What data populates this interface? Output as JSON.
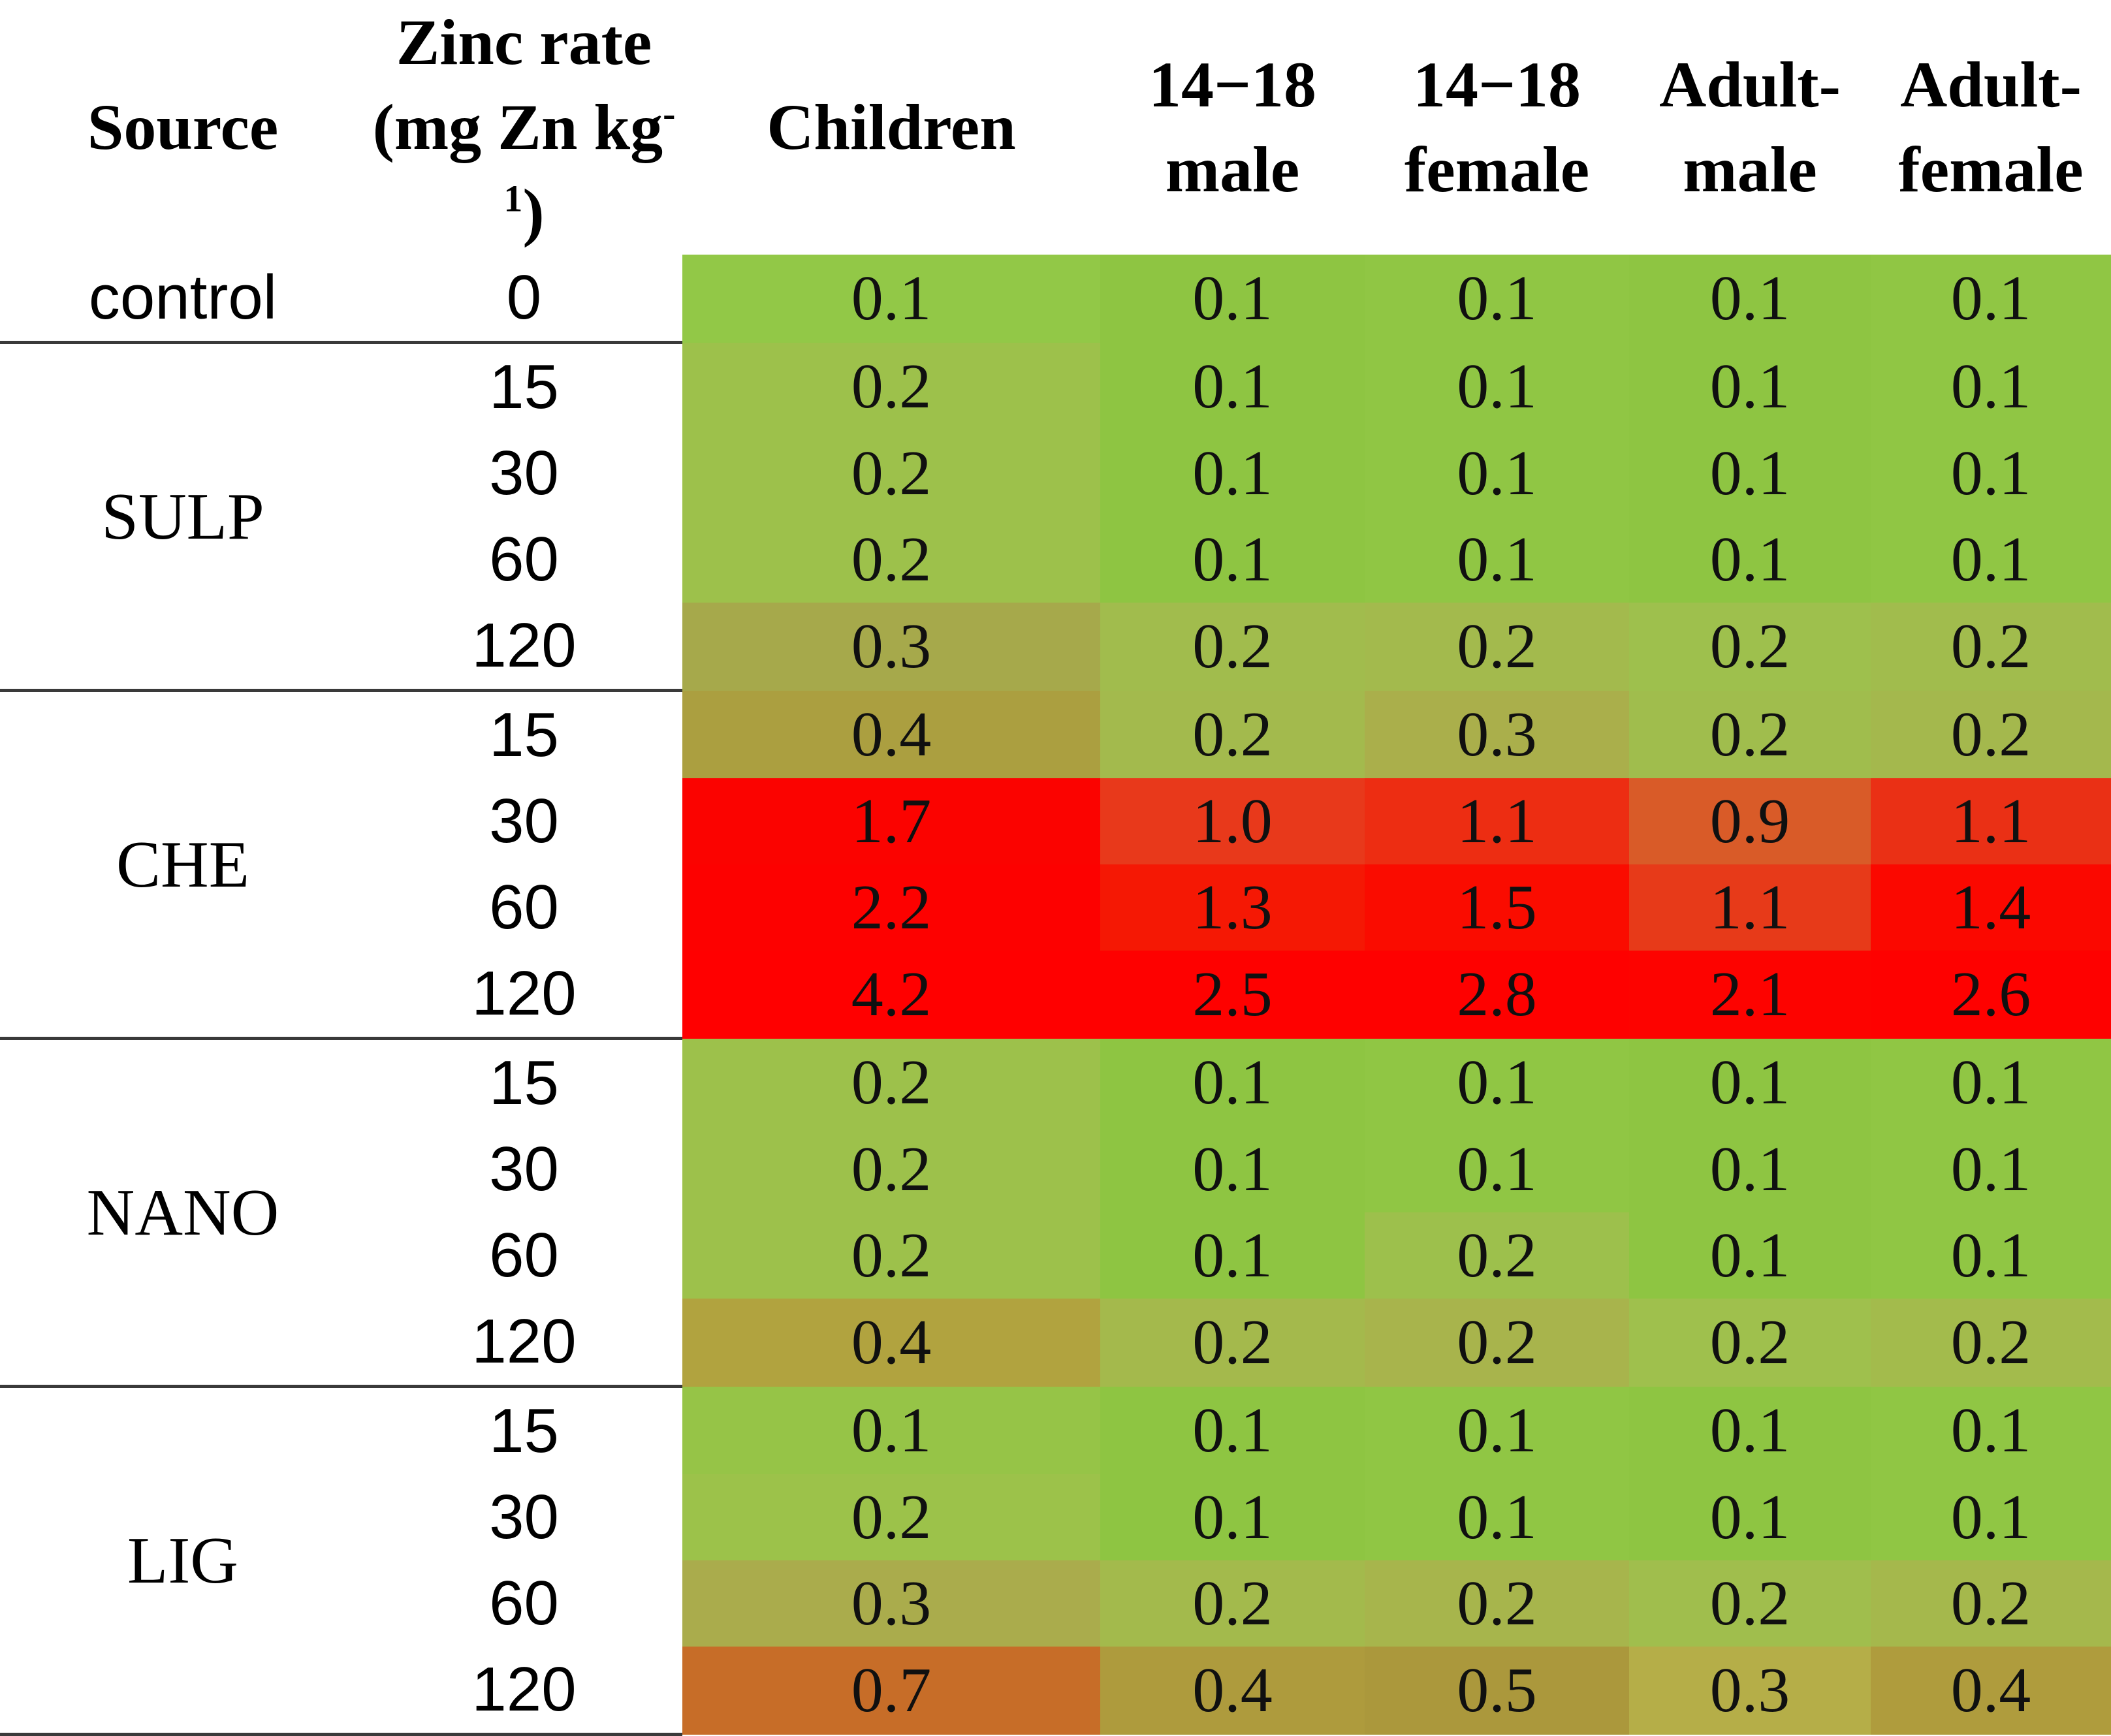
{
  "columns": [
    {
      "line1": "Source",
      "line2": ""
    },
    {
      "line1": "Zinc rate",
      "line2_pre": "(mg Zn kg",
      "sup": "-1",
      "line2_post": ")"
    },
    {
      "line1": "Children",
      "line2": ""
    },
    {
      "line1": "14−18",
      "line2": "male"
    },
    {
      "line1": "14−18",
      "line2": "female"
    },
    {
      "line1": "Adult-",
      "line2": "male"
    },
    {
      "line1": "Adult-",
      "line2": "female"
    }
  ],
  "groups": [
    {
      "source": "control",
      "label_style": "sans",
      "rows": [
        {
          "rate": "0",
          "values": [
            "0.1",
            "0.1",
            "0.1",
            "0.1",
            "0.1"
          ],
          "colors": [
            "#92C847",
            "#8EC542",
            "#90C644",
            "#8EC542",
            "#90C644"
          ]
        }
      ]
    },
    {
      "source": "SULP",
      "label_style": "serif",
      "rows": [
        {
          "rate": "15",
          "values": [
            "0.2",
            "0.1",
            "0.1",
            "0.1",
            "0.1"
          ],
          "colors": [
            "#9DC14B",
            "#8EC542",
            "#90C644",
            "#8EC542",
            "#90C644"
          ]
        },
        {
          "rate": "30",
          "values": [
            "0.2",
            "0.1",
            "0.1",
            "0.1",
            "0.1"
          ],
          "colors": [
            "#9DC14B",
            "#8EC542",
            "#90C644",
            "#8EC542",
            "#90C644"
          ]
        },
        {
          "rate": "60",
          "values": [
            "0.2",
            "0.1",
            "0.1",
            "0.1",
            "0.1"
          ],
          "colors": [
            "#9DC14B",
            "#8EC542",
            "#90C644",
            "#8EC542",
            "#90C644"
          ]
        },
        {
          "rate": "120",
          "values": [
            "0.3",
            "0.2",
            "0.2",
            "0.2",
            "0.2"
          ],
          "colors": [
            "#A6A94B",
            "#A1BC4D",
            "#A3BA4D",
            "#9EC04D",
            "#A1BC4D"
          ]
        }
      ]
    },
    {
      "source": "CHE",
      "label_style": "serif",
      "rows": [
        {
          "rate": "15",
          "values": [
            "0.4",
            "0.2",
            "0.3",
            "0.2",
            "0.2"
          ],
          "colors": [
            "#AB9F40",
            "#A3BA4D",
            "#AAAF4B",
            "#A0BD4D",
            "#A4B84D"
          ]
        },
        {
          "rate": "30",
          "values": [
            "1.7",
            "1.0",
            "1.1",
            "0.9",
            "1.1"
          ],
          "colors": [
            "#FB0300",
            "#E8391B",
            "#ED2D12",
            "#D95B28",
            "#EA3015"
          ]
        },
        {
          "rate": "60",
          "values": [
            "2.2",
            "1.3",
            "1.5",
            "1.1",
            "1.4"
          ],
          "colors": [
            "#FD0100",
            "#F51804",
            "#FA0C00",
            "#E73A19",
            "#FB0800"
          ]
        },
        {
          "rate": "120",
          "values": [
            "4.2",
            "2.5",
            "2.8",
            "2.1",
            "2.6"
          ],
          "colors": [
            "#FF0000",
            "#FE0100",
            "#FE0100",
            "#FD0300",
            "#FE0100"
          ]
        }
      ]
    },
    {
      "source": "NANO",
      "label_style": "serif",
      "rows": [
        {
          "rate": "15",
          "values": [
            "0.2",
            "0.1",
            "0.1",
            "0.1",
            "0.1"
          ],
          "colors": [
            "#9DC14B",
            "#8EC542",
            "#90C644",
            "#8EC542",
            "#90C644"
          ]
        },
        {
          "rate": "30",
          "values": [
            "0.2",
            "0.1",
            "0.1",
            "0.1",
            "0.1"
          ],
          "colors": [
            "#9DC14B",
            "#8EC542",
            "#90C644",
            "#8EC542",
            "#90C644"
          ]
        },
        {
          "rate": "60",
          "values": [
            "0.2",
            "0.1",
            "0.2",
            "0.1",
            "0.1"
          ],
          "colors": [
            "#9DC14B",
            "#8EC542",
            "#9DC04C",
            "#8EC542",
            "#90C644"
          ]
        },
        {
          "rate": "120",
          "values": [
            "0.4",
            "0.2",
            "0.2",
            "0.2",
            "0.2"
          ],
          "colors": [
            "#B1A33F",
            "#A4B94C",
            "#A8B44C",
            "#9FC04D",
            "#A3BB4C"
          ]
        }
      ]
    },
    {
      "source": "LIG",
      "label_style": "serif",
      "rows": [
        {
          "rate": "15",
          "values": [
            "0.1",
            "0.1",
            "0.1",
            "0.1",
            "0.1"
          ],
          "colors": [
            "#96C447",
            "#8EC542",
            "#90C644",
            "#8EC542",
            "#90C644"
          ]
        },
        {
          "rate": "30",
          "values": [
            "0.2",
            "0.1",
            "0.1",
            "0.1",
            "0.1"
          ],
          "colors": [
            "#9CC24A",
            "#8EC542",
            "#90C644",
            "#8EC542",
            "#90C644"
          ]
        },
        {
          "rate": "60",
          "values": [
            "0.3",
            "0.2",
            "0.2",
            "0.2",
            "0.2"
          ],
          "colors": [
            "#AAAC4C",
            "#A3BA4C",
            "#A7B54C",
            "#A0BE4D",
            "#A5B84C"
          ]
        },
        {
          "rate": "120",
          "values": [
            "0.7",
            "0.4",
            "0.5",
            "0.3",
            "0.4"
          ],
          "colors": [
            "#C76D28",
            "#AE9B3D",
            "#AB983C",
            "#B5AE48",
            "#AF9C3D"
          ]
        }
      ]
    }
  ],
  "chart_data": {
    "type": "heatmap",
    "title": "",
    "xlabel": "",
    "ylabel": "",
    "columns": [
      "Children",
      "14−18 male",
      "14−18 female",
      "Adult-male",
      "Adult-female"
    ],
    "row_label_headers": [
      "Source",
      "Zinc rate (mg Zn kg-1)"
    ],
    "rows": [
      {
        "source": "control",
        "zinc_rate": 0,
        "values": [
          0.1,
          0.1,
          0.1,
          0.1,
          0.1
        ]
      },
      {
        "source": "SULP",
        "zinc_rate": 15,
        "values": [
          0.2,
          0.1,
          0.1,
          0.1,
          0.1
        ]
      },
      {
        "source": "SULP",
        "zinc_rate": 30,
        "values": [
          0.2,
          0.1,
          0.1,
          0.1,
          0.1
        ]
      },
      {
        "source": "SULP",
        "zinc_rate": 60,
        "values": [
          0.2,
          0.1,
          0.1,
          0.1,
          0.1
        ]
      },
      {
        "source": "SULP",
        "zinc_rate": 120,
        "values": [
          0.3,
          0.2,
          0.2,
          0.2,
          0.2
        ]
      },
      {
        "source": "CHE",
        "zinc_rate": 15,
        "values": [
          0.4,
          0.2,
          0.3,
          0.2,
          0.2
        ]
      },
      {
        "source": "CHE",
        "zinc_rate": 30,
        "values": [
          1.7,
          1.0,
          1.1,
          0.9,
          1.1
        ]
      },
      {
        "source": "CHE",
        "zinc_rate": 60,
        "values": [
          2.2,
          1.3,
          1.5,
          1.1,
          1.4
        ]
      },
      {
        "source": "CHE",
        "zinc_rate": 120,
        "values": [
          4.2,
          2.5,
          2.8,
          2.1,
          2.6
        ]
      },
      {
        "source": "NANO",
        "zinc_rate": 15,
        "values": [
          0.2,
          0.1,
          0.1,
          0.1,
          0.1
        ]
      },
      {
        "source": "NANO",
        "zinc_rate": 30,
        "values": [
          0.2,
          0.1,
          0.1,
          0.1,
          0.1
        ]
      },
      {
        "source": "NANO",
        "zinc_rate": 60,
        "values": [
          0.2,
          0.1,
          0.2,
          0.1,
          0.1
        ]
      },
      {
        "source": "NANO",
        "zinc_rate": 120,
        "values": [
          0.4,
          0.2,
          0.2,
          0.2,
          0.2
        ]
      },
      {
        "source": "LIG",
        "zinc_rate": 15,
        "values": [
          0.1,
          0.1,
          0.1,
          0.1,
          0.1
        ]
      },
      {
        "source": "LIG",
        "zinc_rate": 30,
        "values": [
          0.2,
          0.1,
          0.1,
          0.1,
          0.1
        ]
      },
      {
        "source": "LIG",
        "zinc_rate": 60,
        "values": [
          0.3,
          0.2,
          0.2,
          0.2,
          0.2
        ]
      },
      {
        "source": "LIG",
        "zinc_rate": 120,
        "values": [
          0.7,
          0.4,
          0.5,
          0.3,
          0.4
        ]
      }
    ],
    "color_scale": {
      "low_value_color": "#8EC542",
      "mid_value_color": "#ABA03F",
      "high_value_color": "#FF0000"
    }
  }
}
